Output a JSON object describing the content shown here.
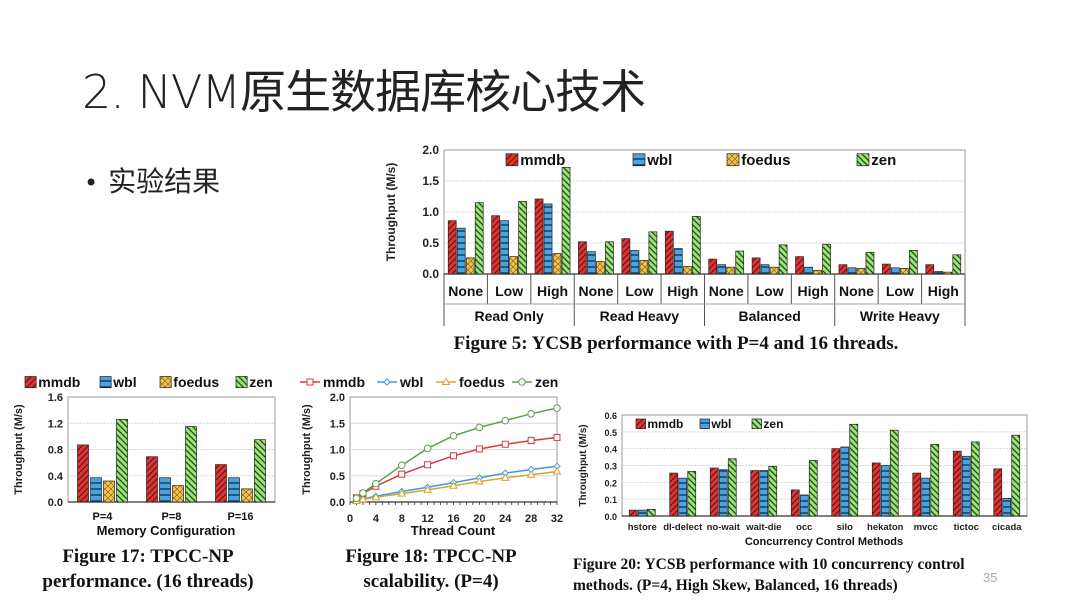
{
  "slide": {
    "title": "2. NVM原生数据库核心技术",
    "bullet": "实验结果",
    "page_number": "35"
  },
  "colors": {
    "mmdb": "#d93535",
    "wbl": "#4aa3df",
    "foedus": "#f2c14e",
    "zen": "#9be27a"
  },
  "chart_data": [
    {
      "id": "fig5",
      "type": "bar",
      "caption": "Figure 5: YCSB performance with P=4 and 16 threads.",
      "ylabel": "Throughput (M/s)",
      "ylim": [
        0,
        2.0
      ],
      "yticks": [
        "0.0",
        "0.5",
        "1.0",
        "1.5",
        "2.0"
      ],
      "ytick_values": [
        0,
        0.5,
        1.0,
        1.5,
        2.0
      ],
      "grid": true,
      "legend": "top",
      "groups": [
        "Read Only",
        "Read Heavy",
        "Balanced",
        "Write Heavy"
      ],
      "categories": [
        "None",
        "Low",
        "High",
        "None",
        "Low",
        "High",
        "None",
        "Low",
        "High",
        "None",
        "Low",
        "High"
      ],
      "series": [
        {
          "name": "mmdb",
          "values": [
            0.86,
            0.94,
            1.21,
            0.52,
            0.57,
            0.69,
            0.24,
            0.26,
            0.28,
            0.15,
            0.16,
            0.15
          ]
        },
        {
          "name": "wbl",
          "values": [
            0.74,
            0.86,
            1.13,
            0.36,
            0.38,
            0.41,
            0.15,
            0.15,
            0.11,
            0.1,
            0.1,
            0.04
          ]
        },
        {
          "name": "foedus",
          "values": [
            0.26,
            0.28,
            0.33,
            0.2,
            0.22,
            0.12,
            0.11,
            0.11,
            0.06,
            0.09,
            0.09,
            0.03
          ]
        },
        {
          "name": "zen",
          "values": [
            1.15,
            1.17,
            1.72,
            0.52,
            0.68,
            0.93,
            0.37,
            0.47,
            0.48,
            0.35,
            0.38,
            0.31
          ]
        }
      ]
    },
    {
      "id": "fig17",
      "type": "bar",
      "caption_lines": [
        "Figure 17: TPCC-NP",
        "performance. (16 threads)"
      ],
      "xlabel": "Memory Configuration",
      "ylabel": "Throughput (M/s)",
      "ylim": [
        0,
        1.6
      ],
      "yticks": [
        "0.0",
        "0.4",
        "0.8",
        "1.2",
        "1.6"
      ],
      "ytick_values": [
        0,
        0.4,
        0.8,
        1.2,
        1.6
      ],
      "grid": true,
      "legend": "top",
      "categories": [
        "P=4",
        "P=8",
        "P=16"
      ],
      "series": [
        {
          "name": "mmdb",
          "values": [
            0.87,
            0.69,
            0.57
          ]
        },
        {
          "name": "wbl",
          "values": [
            0.37,
            0.37,
            0.37
          ]
        },
        {
          "name": "foedus",
          "values": [
            0.32,
            0.25,
            0.2
          ]
        },
        {
          "name": "zen",
          "values": [
            1.26,
            1.15,
            0.95
          ]
        }
      ]
    },
    {
      "id": "fig18",
      "type": "line",
      "caption_lines": [
        "Figure 18: TPCC-NP",
        "scalability. (P=4)"
      ],
      "xlabel": "Thread Count",
      "ylabel": "Throughput (M/s)",
      "xlim": [
        0,
        32
      ],
      "ylim": [
        0,
        2.0
      ],
      "xticks": [
        "0",
        "4",
        "8",
        "12",
        "16",
        "20",
        "24",
        "28",
        "32"
      ],
      "xtick_values": [
        0,
        4,
        8,
        12,
        16,
        20,
        24,
        28,
        32
      ],
      "yticks": [
        "0.0",
        "0.5",
        "1.0",
        "1.5",
        "2.0"
      ],
      "ytick_values": [
        0,
        0.5,
        1.0,
        1.5,
        2.0
      ],
      "grid": true,
      "legend": "top",
      "x": [
        1,
        2,
        4,
        8,
        12,
        16,
        20,
        24,
        28,
        32
      ],
      "series": [
        {
          "name": "mmdb",
          "marker": "square",
          "values": [
            0.08,
            0.16,
            0.3,
            0.53,
            0.71,
            0.88,
            1.01,
            1.1,
            1.17,
            1.23
          ]
        },
        {
          "name": "wbl",
          "marker": "diamond",
          "values": [
            0.03,
            0.06,
            0.11,
            0.2,
            0.28,
            0.37,
            0.46,
            0.55,
            0.62,
            0.68
          ]
        },
        {
          "name": "foedus",
          "marker": "triangle",
          "values": [
            0.02,
            0.05,
            0.09,
            0.16,
            0.23,
            0.31,
            0.39,
            0.46,
            0.52,
            0.58
          ]
        },
        {
          "name": "zen",
          "marker": "circle",
          "values": [
            0.07,
            0.17,
            0.35,
            0.7,
            1.02,
            1.26,
            1.42,
            1.55,
            1.68,
            1.79
          ]
        }
      ]
    },
    {
      "id": "fig20",
      "type": "bar",
      "caption_lines": [
        "Figure 20: YCSB performance with 10 concurrency control",
        "methods. (P=4, High Skew, Balanced, 16 threads)"
      ],
      "xlabel": "Concurrency Control Methods",
      "ylabel": "Throughput (M/s)",
      "ylim": [
        0,
        0.6
      ],
      "yticks": [
        "0.0",
        "0.1",
        "0.2",
        "0.3",
        "0.4",
        "0.5",
        "0.6"
      ],
      "ytick_values": [
        0,
        0.1,
        0.2,
        0.3,
        0.4,
        0.5,
        0.6
      ],
      "grid": true,
      "legend": "top-left",
      "categories": [
        "hstore",
        "dl-delect",
        "no-wait",
        "wait-die",
        "occ",
        "silo",
        "hekaton",
        "mvcc",
        "tictoc",
        "cicada"
      ],
      "series": [
        {
          "name": "mmdb",
          "values": [
            0.035,
            0.255,
            0.285,
            0.27,
            0.155,
            0.4,
            0.315,
            0.255,
            0.385,
            0.28
          ]
        },
        {
          "name": "wbl",
          "values": [
            0.035,
            0.225,
            0.275,
            0.27,
            0.125,
            0.41,
            0.3,
            0.225,
            0.355,
            0.105
          ]
        },
        {
          "name": "zen",
          "values": [
            0.04,
            0.265,
            0.34,
            0.295,
            0.33,
            0.545,
            0.51,
            0.425,
            0.44,
            0.48
          ]
        }
      ]
    }
  ]
}
